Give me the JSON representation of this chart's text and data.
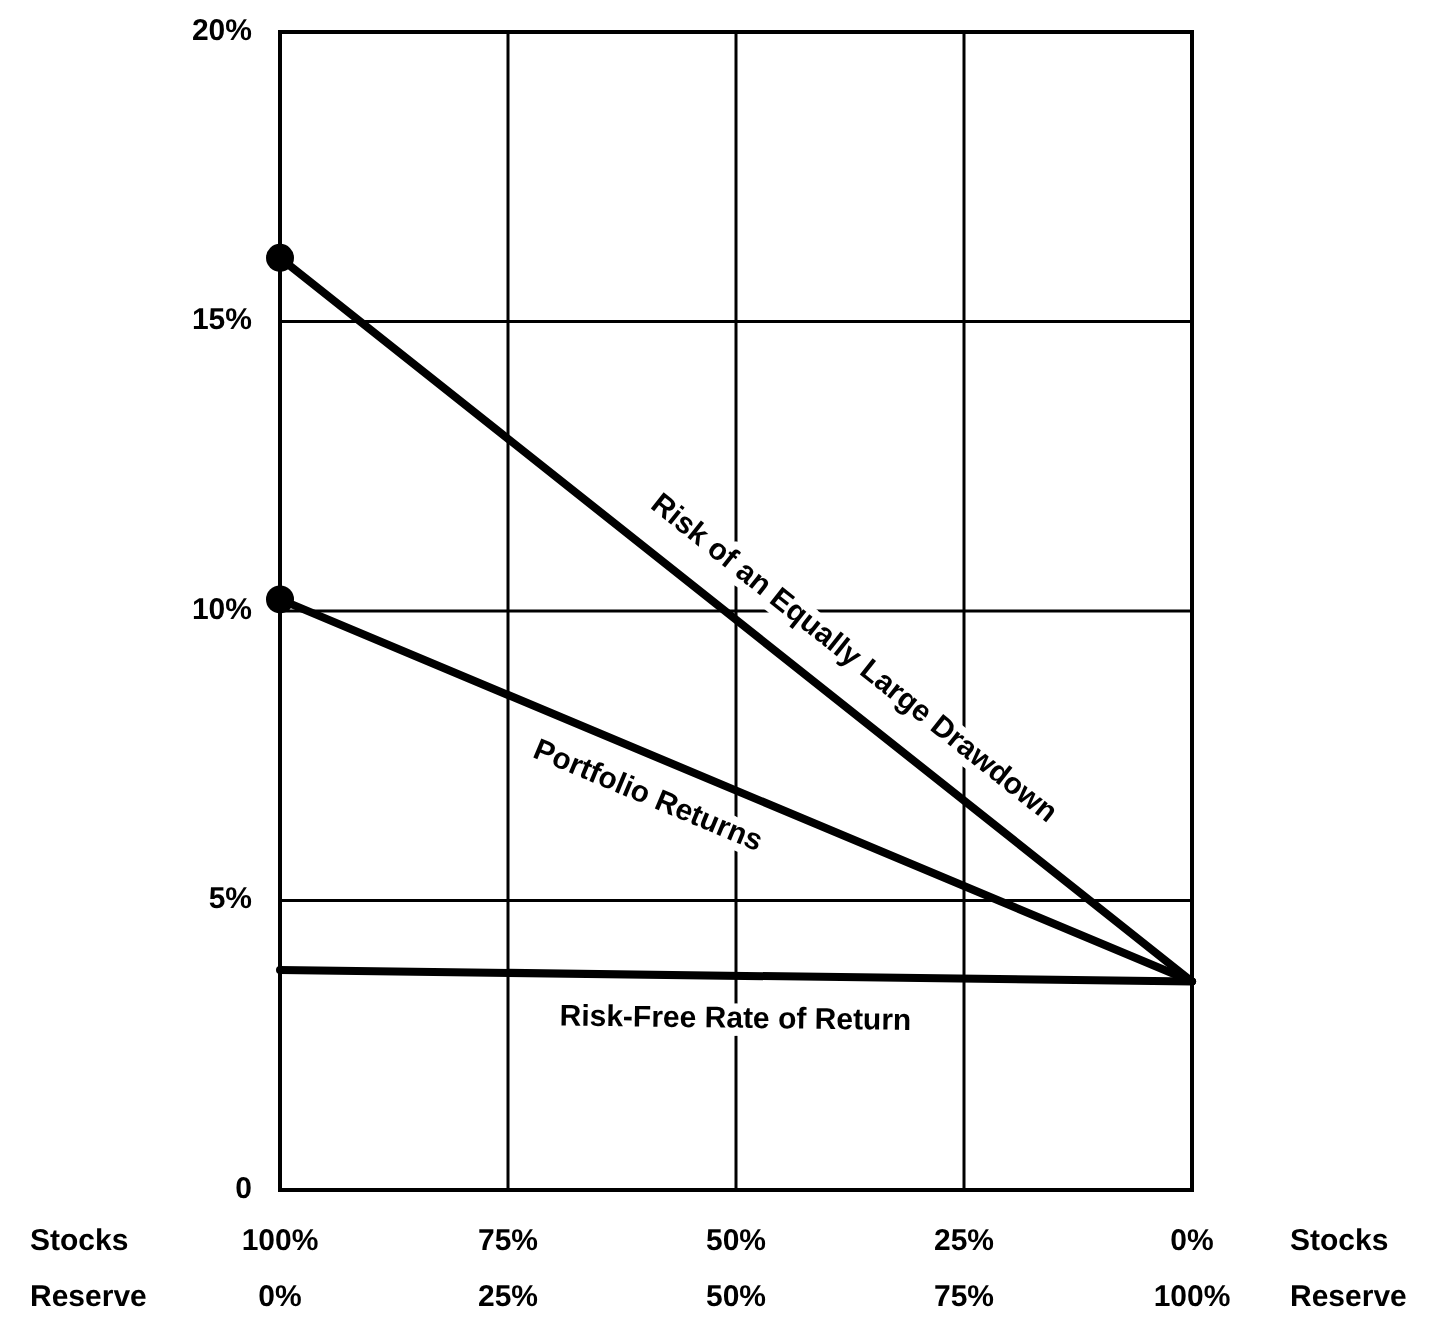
{
  "chart_data": {
    "type": "line",
    "xlabel": "Stocks",
    "x2label": "Reserve",
    "xlim": [
      100,
      0
    ],
    "xticks": [
      {
        "value": 100,
        "label": "100%"
      },
      {
        "value": 75,
        "label": "75%"
      },
      {
        "value": 50,
        "label": "50%"
      },
      {
        "value": 25,
        "label": "25%"
      },
      {
        "value": 0,
        "label": "0%"
      }
    ],
    "x2lim": [
      0,
      100
    ],
    "x2ticks": [
      {
        "value": 0,
        "label": "0%"
      },
      {
        "value": 25,
        "label": "25%"
      },
      {
        "value": 50,
        "label": "50%"
      },
      {
        "value": 75,
        "label": "75%"
      },
      {
        "value": 100,
        "label": "100%"
      }
    ],
    "ylim": [
      0,
      20
    ],
    "yticks": [
      {
        "value": 0,
        "label": "0"
      },
      {
        "value": 5,
        "label": "5%"
      },
      {
        "value": 10,
        "label": "10%"
      },
      {
        "value": 15,
        "label": "15%"
      },
      {
        "value": 20,
        "label": "20%"
      }
    ],
    "grid": true,
    "x": [
      100,
      0
    ],
    "series": [
      {
        "name": "Risk of an Equally Large Drawdown",
        "color": "#000000",
        "values": [
          16.1,
          3.6
        ]
      },
      {
        "name": "Portfolio Returns",
        "color": "#000000",
        "values": [
          10.2,
          3.6
        ]
      },
      {
        "name": "Risk-Free Rate of Return",
        "color": "#000000",
        "values": [
          3.8,
          3.6
        ]
      },
      {
        "type": "scatter",
        "color": "#000000",
        "marker": "circle",
        "x": [
          100,
          100
        ],
        "values": [
          16.1,
          10.2
        ]
      }
    ]
  }
}
